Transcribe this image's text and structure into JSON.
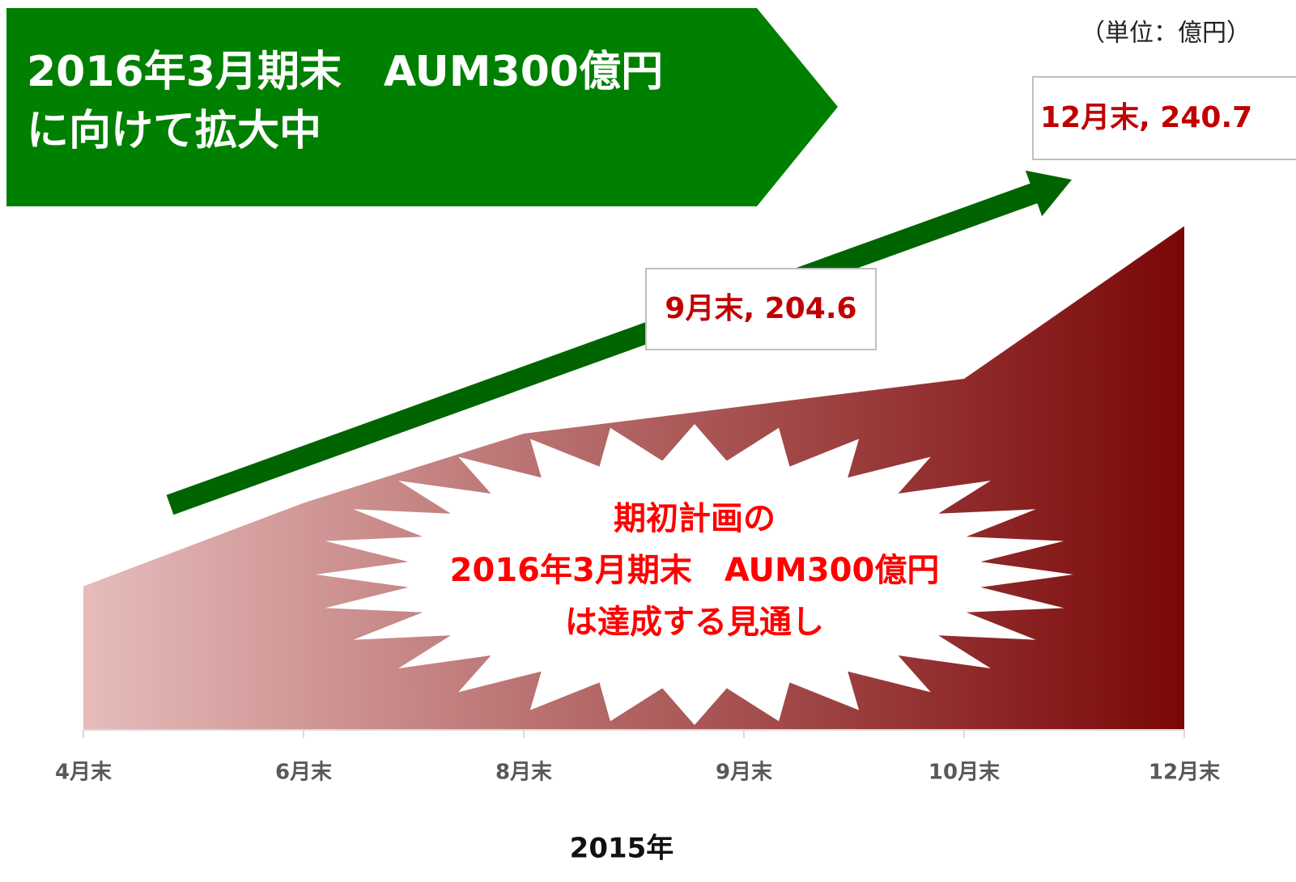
{
  "chart_data": {
    "type": "area",
    "title": [
      "2016年3月期末　AUM300億円",
      "に向けて拡大中"
    ],
    "unit_label": "（単位：億円）",
    "x_label": "2015年",
    "annotation": [
      "期初計画の",
      "2016年3月期末　AUM300億円",
      "は達成する見通し"
    ],
    "categories": [
      "4月末",
      "6月末",
      "8月末",
      "9月末",
      "10月末",
      "12月末"
    ],
    "values": [
      168.5,
      185.2,
      199.1,
      204.6,
      210.1,
      240.7
    ],
    "value_labels": [
      null,
      null,
      null,
      "9月末, 204.6",
      null,
      "12月末, 240.7"
    ],
    "gradient": [
      "#e6bcbb",
      "#7a0707"
    ],
    "ylim": [
      139.7,
      245
    ]
  }
}
